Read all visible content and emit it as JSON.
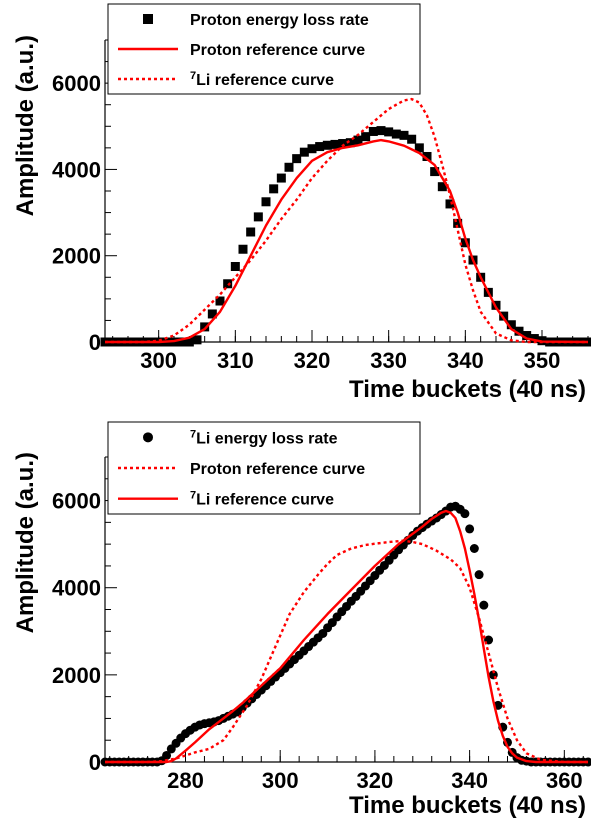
{
  "chart_data": [
    {
      "type": "scatter",
      "xlabel": "Time buckets (40 ns)",
      "ylabel": "Amplitude (a.u.)",
      "xlim": [
        293,
        356
      ],
      "ylim": [
        0,
        7000
      ],
      "x_ticks": [
        "300",
        "310",
        "320",
        "330",
        "340",
        "350"
      ],
      "y_ticks": [
        "0",
        "2000",
        "4000",
        "6000"
      ],
      "legend_position": "top-left",
      "legend": [
        {
          "label": "Proton energy loss rate",
          "prefix": "",
          "style": "square-marker"
        },
        {
          "label": "Proton reference curve",
          "prefix": "",
          "style": "solid-red"
        },
        {
          "label": "Li reference curve",
          "prefix": "7",
          "style": "dotted-red"
        }
      ],
      "series": [
        {
          "name": "Proton energy loss rate",
          "kind": "markers",
          "marker": "square",
          "color": "#000000",
          "x": [
            293,
            294,
            295,
            296,
            297,
            298,
            299,
            300,
            301,
            302,
            303,
            304,
            305,
            306,
            307,
            308,
            309,
            310,
            311,
            312,
            313,
            314,
            315,
            316,
            317,
            318,
            319,
            320,
            321,
            322,
            323,
            324,
            325,
            326,
            327,
            328,
            329,
            330,
            331,
            332,
            333,
            334,
            335,
            336,
            337,
            338,
            339,
            340,
            341,
            342,
            343,
            344,
            345,
            346,
            347,
            348,
            349,
            350,
            351,
            352,
            353,
            354,
            355,
            356
          ],
          "y": [
            0,
            0,
            0,
            0,
            0,
            0,
            0,
            0,
            0,
            0,
            0,
            0,
            50,
            350,
            650,
            950,
            1350,
            1750,
            2150,
            2550,
            2900,
            3250,
            3550,
            3800,
            4050,
            4250,
            4400,
            4480,
            4530,
            4560,
            4580,
            4600,
            4620,
            4680,
            4760,
            4880,
            4900,
            4870,
            4820,
            4790,
            4700,
            4500,
            4300,
            3950,
            3600,
            3200,
            2750,
            2300,
            1900,
            1500,
            1150,
            850,
            600,
            400,
            250,
            150,
            80,
            30,
            0,
            0,
            0,
            0,
            0,
            0
          ]
        },
        {
          "name": "Proton reference curve",
          "kind": "line",
          "dash": "solid",
          "color": "#ff0000",
          "x": [
            293,
            300,
            302,
            304,
            306,
            308,
            310,
            312,
            314,
            316,
            318,
            320,
            322,
            324,
            326,
            328,
            329,
            330,
            332,
            334,
            336,
            338,
            339,
            340,
            341,
            342,
            344,
            346,
            348,
            350,
            356
          ],
          "y": [
            0,
            0,
            20,
            100,
            300,
            700,
            1300,
            2000,
            2700,
            3300,
            3800,
            4200,
            4400,
            4500,
            4560,
            4650,
            4680,
            4650,
            4550,
            4380,
            4100,
            3500,
            3000,
            2400,
            1900,
            1500,
            800,
            300,
            80,
            10,
            0
          ]
        },
        {
          "name": "Li reference curve",
          "kind": "line",
          "dash": "dotted",
          "color": "#ff0000",
          "x": [
            293,
            298,
            300,
            302,
            304,
            306,
            308,
            310,
            312,
            314,
            316,
            318,
            320,
            322,
            324,
            326,
            328,
            330,
            332,
            333,
            334,
            335,
            336,
            337,
            338,
            339,
            340,
            341,
            342,
            344,
            346,
            348,
            350,
            356
          ],
          "y": [
            0,
            0,
            30,
            150,
            400,
            750,
            1100,
            1500,
            1900,
            2350,
            2850,
            3300,
            3800,
            4200,
            4550,
            4800,
            5100,
            5400,
            5600,
            5630,
            5550,
            5250,
            4750,
            4100,
            3400,
            2600,
            1800,
            1200,
            700,
            200,
            40,
            0,
            0,
            0
          ]
        }
      ]
    },
    {
      "type": "scatter",
      "xlabel": "Time buckets (40 ns)",
      "ylabel": "Amplitude (a.u.)",
      "xlim": [
        263,
        365
      ],
      "ylim": [
        0,
        7000
      ],
      "x_ticks": [
        "280",
        "300",
        "320",
        "340",
        "360"
      ],
      "y_ticks": [
        "0",
        "2000",
        "4000",
        "6000"
      ],
      "legend_position": "top-left",
      "legend": [
        {
          "label": "Li energy loss rate",
          "prefix": "7",
          "style": "circle-marker"
        },
        {
          "label": "Proton reference curve",
          "prefix": "",
          "style": "dotted-red"
        },
        {
          "label": "Li reference curve",
          "prefix": "7",
          "style": "solid-red"
        }
      ],
      "series": [
        {
          "name": "Li energy loss rate",
          "kind": "markers",
          "marker": "circle",
          "color": "#000000",
          "x": [
            263,
            264,
            265,
            266,
            267,
            268,
            269,
            270,
            271,
            272,
            273,
            274,
            275,
            276,
            277,
            278,
            279,
            280,
            281,
            282,
            283,
            284,
            285,
            286,
            287,
            288,
            289,
            290,
            291,
            292,
            293,
            294,
            295,
            296,
            297,
            298,
            299,
            300,
            301,
            302,
            303,
            304,
            305,
            306,
            307,
            308,
            309,
            310,
            311,
            312,
            313,
            314,
            315,
            316,
            317,
            318,
            319,
            320,
            321,
            322,
            323,
            324,
            325,
            326,
            327,
            328,
            329,
            330,
            331,
            332,
            333,
            334,
            335,
            336,
            337,
            338,
            339,
            340,
            341,
            342,
            343,
            344,
            345,
            346,
            347,
            348,
            349,
            350,
            351,
            352,
            353,
            354,
            355,
            356,
            357,
            358,
            359,
            360,
            361,
            362,
            363,
            364,
            365
          ],
          "y": [
            0,
            0,
            0,
            0,
            0,
            0,
            0,
            0,
            0,
            0,
            0,
            0,
            30,
            150,
            300,
            430,
            550,
            650,
            730,
            800,
            850,
            880,
            900,
            920,
            950,
            1000,
            1050,
            1100,
            1150,
            1250,
            1350,
            1450,
            1550,
            1650,
            1750,
            1850,
            1950,
            2050,
            2150,
            2250,
            2350,
            2450,
            2550,
            2650,
            2750,
            2850,
            2950,
            3080,
            3200,
            3330,
            3450,
            3570,
            3690,
            3800,
            3920,
            4040,
            4160,
            4280,
            4400,
            4510,
            4630,
            4750,
            4870,
            4980,
            5090,
            5200,
            5300,
            5380,
            5460,
            5530,
            5600,
            5680,
            5760,
            5850,
            5870,
            5800,
            5700,
            5350,
            4900,
            4300,
            3600,
            2800,
            2000,
            1300,
            800,
            450,
            220,
            100,
            40,
            20,
            0,
            0,
            0,
            0,
            0,
            0,
            0,
            0,
            0,
            0,
            0,
            0,
            0
          ]
        },
        {
          "name": "Proton reference curve",
          "kind": "line",
          "dash": "dotted",
          "color": "#ff0000",
          "x": [
            263,
            272,
            275,
            278,
            280,
            282,
            285,
            288,
            290,
            293,
            296,
            298,
            300,
            302,
            305,
            308,
            310,
            312,
            315,
            318,
            320,
            323,
            326,
            328,
            330,
            333,
            336,
            338,
            340,
            342,
            344,
            346,
            348,
            350,
            352,
            355,
            360,
            365
          ],
          "y": [
            0,
            0,
            20,
            80,
            150,
            220,
            300,
            500,
            800,
            1300,
            1900,
            2400,
            2900,
            3400,
            3900,
            4300,
            4550,
            4750,
            4900,
            4980,
            5010,
            5050,
            5080,
            5050,
            5000,
            4850,
            4650,
            4450,
            4000,
            3300,
            2500,
            1700,
            1000,
            500,
            200,
            50,
            0,
            0
          ]
        },
        {
          "name": "Li reference curve",
          "kind": "line",
          "dash": "solid",
          "color": "#ff0000",
          "x": [
            263,
            276,
            277,
            278,
            280,
            282,
            285,
            288,
            290,
            292,
            295,
            298,
            300,
            305,
            310,
            315,
            320,
            325,
            330,
            332,
            334,
            335,
            336,
            337,
            338,
            339,
            340,
            341,
            342,
            343,
            344,
            345,
            346,
            347,
            348,
            349,
            350,
            352,
            354,
            356,
            360,
            365
          ],
          "y": [
            0,
            0,
            20,
            80,
            260,
            450,
            750,
            1000,
            1170,
            1350,
            1650,
            1950,
            2150,
            2800,
            3400,
            3950,
            4500,
            5000,
            5400,
            5580,
            5720,
            5760,
            5720,
            5600,
            5300,
            4900,
            4400,
            3850,
            3250,
            2600,
            1950,
            1400,
            950,
            600,
            350,
            200,
            100,
            20,
            0,
            0,
            0,
            0
          ]
        }
      ]
    }
  ]
}
